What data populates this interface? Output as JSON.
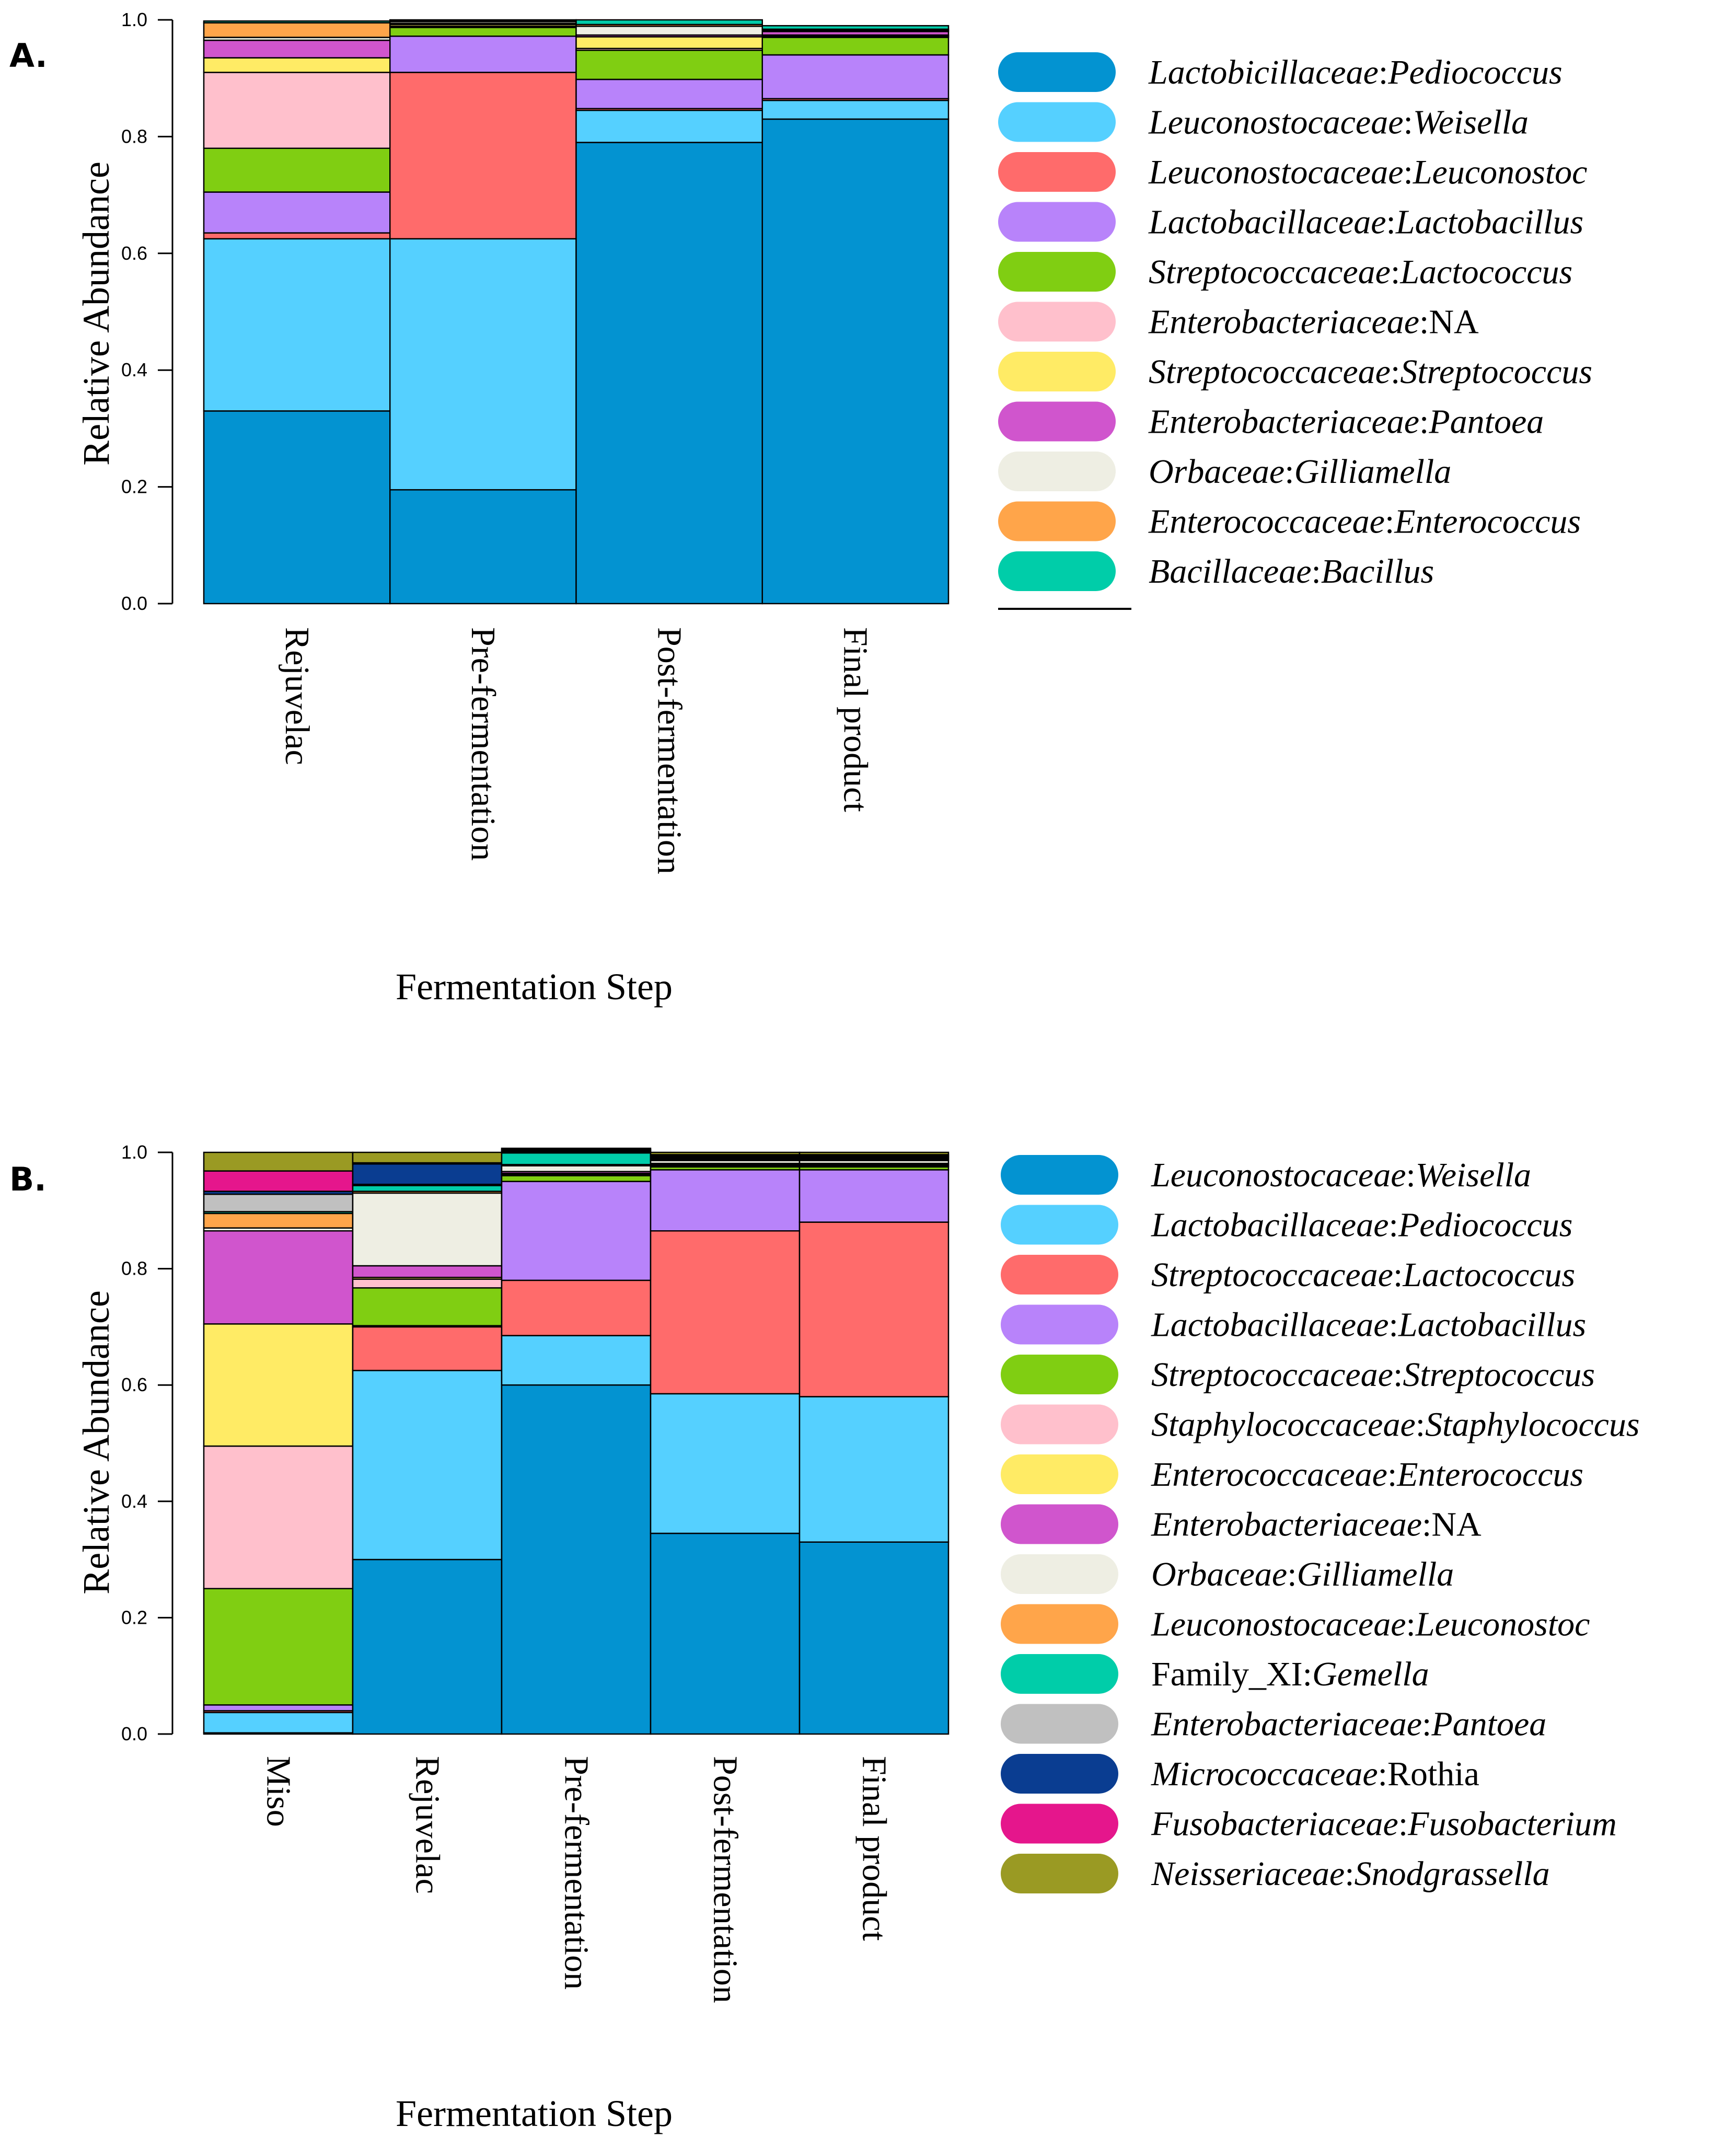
{
  "panels": [
    {
      "panel_label": "A.",
      "legend_title": "",
      "legend": [
        {
          "family": "Lactobicillaceae",
          "genus": "Pediococcus",
          "family_italic": true,
          "genus_italic": true,
          "color": "#0393D1"
        },
        {
          "family": "Leuconostocaceae",
          "genus": "Weisella",
          "family_italic": true,
          "genus_italic": true,
          "color": "#55D0FF"
        },
        {
          "family": "Leuconostocaceae",
          "genus": "Leuconostoc",
          "family_italic": true,
          "genus_italic": true,
          "color": "#FF6B6B"
        },
        {
          "family": "Lactobacillaceae",
          "genus": "Lactobacillus",
          "family_italic": true,
          "genus_italic": true,
          "color": "#B883FA"
        },
        {
          "family": "Streptococcaceae",
          "genus": "Lactococcus",
          "family_italic": true,
          "genus_italic": true,
          "color": "#80CE12"
        },
        {
          "family": "Enterobacteriaceae",
          "genus": "NA",
          "family_italic": true,
          "genus_italic": false,
          "color": "#FFC0CC"
        },
        {
          "family": "Streptococcaceae",
          "genus": "Streptococcus",
          "family_italic": true,
          "genus_italic": true,
          "color": "#FFEB65"
        },
        {
          "family": "Enterobacteriaceae",
          "genus": "Pantoea",
          "family_italic": true,
          "genus_italic": true,
          "color": "#D055CD"
        },
        {
          "family": "Orbaceae",
          "genus": "Gilliamella",
          "family_italic": true,
          "genus_italic": true,
          "color": "#EEEEE3"
        },
        {
          "family": "Enterococcaceae",
          "genus": "Enterococcus",
          "family_italic": true,
          "genus_italic": true,
          "color": "#FFA54A"
        },
        {
          "family": "Bacillaceae",
          "genus": "Bacillus",
          "family_italic": true,
          "genus_italic": true,
          "color": "#00CDA9"
        }
      ],
      "chart_data": {
        "type": "bar",
        "stacked": true,
        "xlabel": "Fermentation Step",
        "ylabel": "Relative Abundance",
        "ylim": [
          0,
          1
        ],
        "yticks": [
          "0.0",
          "0.2",
          "0.4",
          "0.6",
          "0.8",
          "1.0"
        ],
        "categories": [
          "Rejuvelac",
          "Pre-fermentation",
          "Post-fermentation",
          "Final product"
        ],
        "series": [
          {
            "name": "Lactobicillaceae:Pediococcus",
            "values": [
              0.33,
              0.195,
              0.79,
              0.83
            ]
          },
          {
            "name": "Leuconostocaceae:Weisella",
            "values": [
              0.295,
              0.43,
              0.055,
              0.032
            ]
          },
          {
            "name": "Leuconostocaceae:Leuconostoc",
            "values": [
              0.01,
              0.285,
              0.003,
              0.003
            ]
          },
          {
            "name": "Lactobacillaceae:Lactobacillus",
            "values": [
              0.07,
              0.062,
              0.05,
              0.075
            ]
          },
          {
            "name": "Streptococcaceae:Lactococcus",
            "values": [
              0.075,
              0.015,
              0.05,
              0.03
            ]
          },
          {
            "name": "Enterobacteriaceae:NA",
            "values": [
              0.13,
              0.002,
              0.003,
              0.002
            ]
          },
          {
            "name": "Streptococcaceae:Streptococcus",
            "values": [
              0.025,
              0.003,
              0.02,
              0.002
            ]
          },
          {
            "name": "Enterobacteriaceae:Pantoea",
            "values": [
              0.03,
              0.002,
              0.003,
              0.006
            ]
          },
          {
            "name": "Orbaceae:Gilliamella",
            "values": [
              0.005,
              0.003,
              0.015,
              0.002
            ]
          },
          {
            "name": "Enterococcaceae:Enterococcus",
            "values": [
              0.025,
              0.001,
              0.003,
              0.002
            ]
          },
          {
            "name": "Bacillaceae:Bacillus",
            "values": [
              0.003,
              0.002,
              0.008,
              0.006
            ]
          }
        ]
      }
    },
    {
      "panel_label": "B.",
      "legend_title": "",
      "legend": [
        {
          "family": "Leuconostocaceae",
          "genus": "Weisella",
          "family_italic": true,
          "genus_italic": true,
          "color": "#0393D1"
        },
        {
          "family": "Lactobacillaceae",
          "genus": "Pediococcus",
          "family_italic": true,
          "genus_italic": true,
          "color": "#55D0FF"
        },
        {
          "family": "Streptococcaceae",
          "genus": "Lactococcus",
          "family_italic": true,
          "genus_italic": true,
          "color": "#FF6B6B"
        },
        {
          "family": "Lactobacillaceae",
          "genus": "Lactobacillus",
          "family_italic": true,
          "genus_italic": true,
          "color": "#B883FA"
        },
        {
          "family": "Streptococcaceae",
          "genus": "Streptococcus",
          "family_italic": true,
          "genus_italic": true,
          "color": "#80CE12"
        },
        {
          "family": "Staphylococcaceae",
          "genus": "Staphylococcus",
          "family_italic": true,
          "genus_italic": true,
          "color": "#FFC0CC"
        },
        {
          "family": "Enterococcaceae",
          "genus": "Enterococcus",
          "family_italic": true,
          "genus_italic": true,
          "color": "#FFEB65"
        },
        {
          "family": "Enterobacteriaceae",
          "genus": "NA",
          "family_italic": true,
          "genus_italic": false,
          "color": "#D055CD"
        },
        {
          "family": "Orbaceae",
          "genus": "Gilliamella",
          "family_italic": true,
          "genus_italic": true,
          "color": "#EEEEE3"
        },
        {
          "family": "Leuconostocaceae",
          "genus": "Leuconostoc",
          "family_italic": true,
          "genus_italic": true,
          "color": "#FFA54A"
        },
        {
          "family": "Family_XI",
          "genus": "Gemella",
          "family_italic": false,
          "genus_italic": true,
          "color": "#00CDA9"
        },
        {
          "family": "Enterobacteriaceae",
          "genus": "Pantoea",
          "family_italic": true,
          "genus_italic": true,
          "color": "#C0C0C0"
        },
        {
          "family": "Micrococcaceae",
          "genus": "Rothia",
          "family_italic": true,
          "genus_italic": false,
          "color": "#0A3D91"
        },
        {
          "family": "Fusobacteriaceae",
          "genus": "Fusobacterium",
          "family_italic": true,
          "genus_italic": true,
          "color": "#E5168C"
        },
        {
          "family": "Neisseriaceae",
          "genus": "Snodgrassella",
          "family_italic": true,
          "genus_italic": true,
          "color": "#9A9A23"
        }
      ],
      "chart_data": {
        "type": "bar",
        "stacked": true,
        "xlabel": "Fermentation Step",
        "ylabel": "Relative Abundance",
        "ylim": [
          0,
          1
        ],
        "yticks": [
          "0.0",
          "0.2",
          "0.4",
          "0.6",
          "0.8",
          "1.0"
        ],
        "categories": [
          "Miso",
          "Rejuvelac",
          "Pre-fermentation",
          "Post-fermentation",
          "Final product"
        ],
        "series": [
          {
            "name": "Leuconostocaceae:Weisella",
            "values": [
              0.002,
              0.3,
              0.6,
              0.345,
              0.33
            ]
          },
          {
            "name": "Lactobacillaceae:Pediococcus",
            "values": [
              0.035,
              0.325,
              0.085,
              0.24,
              0.25
            ]
          },
          {
            "name": "Streptococcaceae:Lactococcus",
            "values": [
              0.003,
              0.075,
              0.095,
              0.28,
              0.3
            ]
          },
          {
            "name": "Lactobacillaceae:Lactobacillus",
            "values": [
              0.01,
              0.002,
              0.17,
              0.105,
              0.09
            ]
          },
          {
            "name": "Streptococcaceae:Streptococcus",
            "values": [
              0.2,
              0.065,
              0.01,
              0.005,
              0.005
            ]
          },
          {
            "name": "Staphylococcaceae:Staphylococcus",
            "values": [
              0.245,
              0.015,
              0.002,
              0.002,
              0.002
            ]
          },
          {
            "name": "Enterococcaceae:Enterococcus",
            "values": [
              0.21,
              0.003,
              0.002,
              0.002,
              0.002
            ]
          },
          {
            "name": "Enterobacteriaceae:NA",
            "values": [
              0.16,
              0.02,
              0.003,
              0.002,
              0.002
            ]
          },
          {
            "name": "Orbaceae:Gilliamella",
            "values": [
              0.005,
              0.125,
              0.01,
              0.005,
              0.005
            ]
          },
          {
            "name": "Leuconostocaceae:Leuconostoc",
            "values": [
              0.025,
              0.003,
              0.002,
              0.002,
              0.002
            ]
          },
          {
            "name": "Family_XI:Gemella",
            "values": [
              0.003,
              0.01,
              0.02,
              0.002,
              0.002
            ]
          },
          {
            "name": "Enterobacteriaceae:Pantoea",
            "values": [
              0.03,
              0.002,
              0.002,
              0.002,
              0.002
            ]
          },
          {
            "name": "Micrococcaceae:Rothia",
            "values": [
              0.005,
              0.035,
              0.002,
              0.002,
              0.002
            ]
          },
          {
            "name": "Fusobacteriaceae:Fusobacterium",
            "values": [
              0.035,
              0.002,
              0.002,
              0.002,
              0.002
            ]
          },
          {
            "name": "Neisseriaceae:Snodgrassella",
            "values": [
              0.032,
              0.018,
              0.002,
              0.004,
              0.004
            ]
          }
        ]
      }
    }
  ]
}
